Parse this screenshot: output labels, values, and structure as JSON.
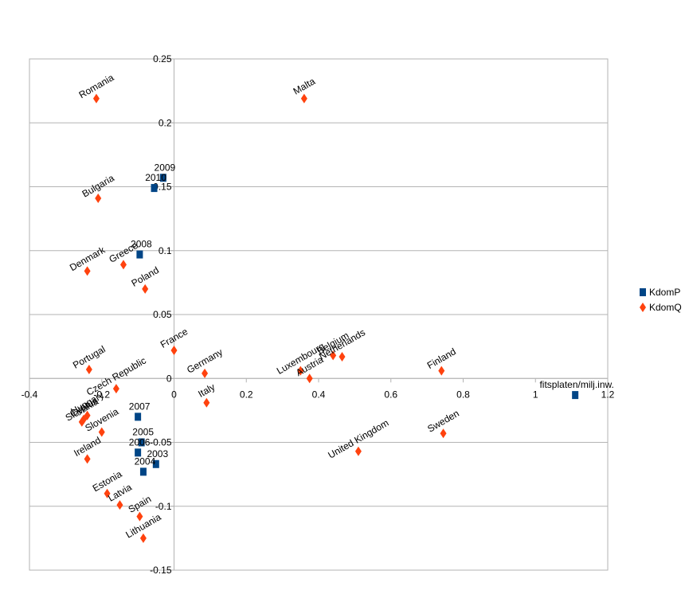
{
  "chart_data": {
    "type": "scatter",
    "title": "",
    "xlabel": "",
    "ylabel": "",
    "xlim": [
      -0.4,
      1.2
    ],
    "ylim": [
      -0.15,
      0.25
    ],
    "x_ticks": [
      "-0.4",
      "-0.2",
      "0",
      "0.2",
      "0.4",
      "0.6",
      "0.8",
      "1",
      "1.2"
    ],
    "y_ticks": [
      "0.25",
      "0.2",
      "0.15",
      "0.1",
      "0.05",
      "0",
      "-0.05",
      "-0.1",
      "-0.15"
    ],
    "grid": "horizontal",
    "legend_position": "right",
    "series": [
      {
        "name": "KdomP",
        "marker": "square",
        "color": "#004586",
        "points": [
          {
            "label": "2009",
            "x": -0.03,
            "y": 0.157
          },
          {
            "label": "2010",
            "x": -0.055,
            "y": 0.149
          },
          {
            "label": "2008",
            "x": -0.095,
            "y": 0.097
          },
          {
            "label": "2007",
            "x": -0.1,
            "y": -0.03
          },
          {
            "label": "2005",
            "x": -0.09,
            "y": -0.05
          },
          {
            "label": "2006",
            "x": -0.1,
            "y": -0.058
          },
          {
            "label": "2003",
            "x": -0.05,
            "y": -0.067
          },
          {
            "label": "2004",
            "x": -0.085,
            "y": -0.073
          },
          {
            "label": "fitsplaten/milj.inw.",
            "x": 1.11,
            "y": -0.013
          }
        ]
      },
      {
        "name": "KdomQ",
        "marker": "diamond",
        "color": "#ff420e",
        "points": [
          {
            "label": "Romania",
            "x": -0.215,
            "y": 0.219
          },
          {
            "label": "Malta",
            "x": 0.36,
            "y": 0.219
          },
          {
            "label": "Bulgaria",
            "x": -0.21,
            "y": 0.141
          },
          {
            "label": "Denmark",
            "x": -0.24,
            "y": 0.084
          },
          {
            "label": "Greece",
            "x": -0.14,
            "y": 0.089
          },
          {
            "label": "Poland",
            "x": -0.08,
            "y": 0.07
          },
          {
            "label": "France",
            "x": 0.0,
            "y": 0.022
          },
          {
            "label": "Germany",
            "x": 0.085,
            "y": 0.004
          },
          {
            "label": "Portugal",
            "x": -0.235,
            "y": 0.007
          },
          {
            "label": "Czech Republic",
            "x": -0.16,
            "y": -0.008
          },
          {
            "label": "Italy",
            "x": 0.09,
            "y": -0.019
          },
          {
            "label": "Luxembourg",
            "x": 0.35,
            "y": 0.006
          },
          {
            "label": "Austria",
            "x": 0.375,
            "y": 0.0
          },
          {
            "label": "Belgium",
            "x": 0.44,
            "y": 0.018
          },
          {
            "label": "Netherlands",
            "x": 0.465,
            "y": 0.017
          },
          {
            "label": "Finland",
            "x": 0.74,
            "y": 0.006
          },
          {
            "label": "Hungary",
            "x": -0.24,
            "y": -0.029
          },
          {
            "label": "Cyprus",
            "x": -0.25,
            "y": -0.032
          },
          {
            "label": "Slovakia",
            "x": -0.255,
            "y": -0.034
          },
          {
            "label": "Slovenia",
            "x": -0.2,
            "y": -0.042
          },
          {
            "label": "Ireland",
            "x": -0.24,
            "y": -0.063
          },
          {
            "label": "Estonia",
            "x": -0.185,
            "y": -0.09
          },
          {
            "label": "Latvia",
            "x": -0.15,
            "y": -0.099
          },
          {
            "label": "Spain",
            "x": -0.095,
            "y": -0.108
          },
          {
            "label": "Lithuania",
            "x": -0.085,
            "y": -0.125
          },
          {
            "label": "United Kingdom",
            "x": 0.51,
            "y": -0.057
          },
          {
            "label": "Sweden",
            "x": 0.745,
            "y": -0.043
          }
        ]
      }
    ]
  }
}
